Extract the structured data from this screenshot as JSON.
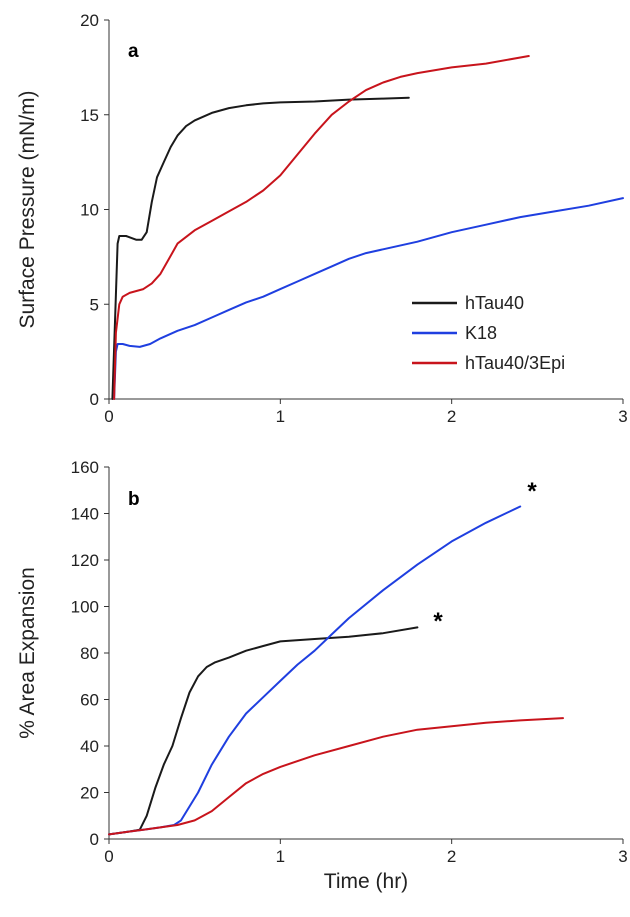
{
  "chart_data": [
    {
      "type": "line",
      "panel_label": "a",
      "xlabel": "",
      "ylabel": "Surface Pressure (mN/m)",
      "xlim": [
        0,
        3
      ],
      "ylim": [
        0,
        20
      ],
      "x_ticks": [
        "0",
        "1",
        "2",
        "3"
      ],
      "y_ticks": [
        "0",
        "5",
        "10",
        "15",
        "20"
      ],
      "grid": false,
      "legend_position": "lower-right",
      "series": [
        {
          "name": "hTau40",
          "color": "#1a1a1a",
          "x": [
            0.02,
            0.04,
            0.05,
            0.06,
            0.08,
            0.1,
            0.13,
            0.16,
            0.19,
            0.22,
            0.25,
            0.28,
            0.32,
            0.36,
            0.4,
            0.45,
            0.5,
            0.6,
            0.7,
            0.8,
            0.9,
            1.0,
            1.2,
            1.4,
            1.6,
            1.75
          ],
          "y": [
            0,
            5.5,
            8.2,
            8.6,
            8.6,
            8.6,
            8.5,
            8.4,
            8.4,
            8.8,
            10.4,
            11.7,
            12.5,
            13.3,
            13.9,
            14.4,
            14.7,
            15.1,
            15.35,
            15.5,
            15.6,
            15.65,
            15.7,
            15.8,
            15.85,
            15.9
          ]
        },
        {
          "name": "K18",
          "color": "#1f3fe0",
          "x": [
            0.03,
            0.04,
            0.05,
            0.08,
            0.12,
            0.18,
            0.24,
            0.3,
            0.4,
            0.5,
            0.6,
            0.7,
            0.8,
            0.9,
            1.0,
            1.1,
            1.2,
            1.3,
            1.4,
            1.5,
            1.6,
            1.8,
            2.0,
            2.2,
            2.4,
            2.6,
            2.8,
            3.0
          ],
          "y": [
            0,
            2.5,
            2.9,
            2.9,
            2.8,
            2.75,
            2.9,
            3.2,
            3.6,
            3.9,
            4.3,
            4.7,
            5.1,
            5.4,
            5.8,
            6.2,
            6.6,
            7.0,
            7.4,
            7.7,
            7.9,
            8.3,
            8.8,
            9.2,
            9.6,
            9.9,
            10.2,
            10.6
          ]
        },
        {
          "name": "hTau40/3Epi",
          "color": "#c8141c",
          "x": [
            0.03,
            0.04,
            0.06,
            0.08,
            0.12,
            0.16,
            0.2,
            0.25,
            0.3,
            0.35,
            0.4,
            0.5,
            0.6,
            0.7,
            0.8,
            0.9,
            1.0,
            1.1,
            1.2,
            1.3,
            1.4,
            1.5,
            1.6,
            1.7,
            1.8,
            2.0,
            2.2,
            2.45
          ],
          "y": [
            0,
            3.5,
            5.0,
            5.4,
            5.6,
            5.7,
            5.8,
            6.1,
            6.6,
            7.4,
            8.2,
            8.9,
            9.4,
            9.9,
            10.4,
            11.0,
            11.8,
            12.9,
            14.0,
            15.0,
            15.7,
            16.3,
            16.7,
            17.0,
            17.2,
            17.5,
            17.7,
            18.1
          ]
        }
      ]
    },
    {
      "type": "line",
      "panel_label": "b",
      "xlabel": "Time (hr)",
      "ylabel": "% Area Expansion",
      "xlim": [
        0,
        3
      ],
      "ylim": [
        0,
        160
      ],
      "x_ticks": [
        "0",
        "1",
        "2",
        "3"
      ],
      "y_ticks": [
        "0",
        "20",
        "40",
        "60",
        "80",
        "100",
        "120",
        "140",
        "160"
      ],
      "grid": false,
      "annotations": [
        "*",
        "*"
      ],
      "series": [
        {
          "name": "hTau40",
          "color": "#1a1a1a",
          "x": [
            0.0,
            0.1,
            0.18,
            0.22,
            0.27,
            0.32,
            0.37,
            0.42,
            0.47,
            0.52,
            0.57,
            0.62,
            0.7,
            0.8,
            0.9,
            1.0,
            1.2,
            1.4,
            1.6,
            1.8
          ],
          "y": [
            2,
            3,
            4,
            10,
            22,
            32,
            40,
            52,
            63,
            70,
            74,
            76,
            78,
            81,
            83,
            85,
            86,
            87,
            88.5,
            91
          ]
        },
        {
          "name": "K18",
          "color": "#1f3fe0",
          "x": [
            0.0,
            0.1,
            0.2,
            0.3,
            0.38,
            0.42,
            0.47,
            0.52,
            0.6,
            0.7,
            0.8,
            0.9,
            1.0,
            1.1,
            1.2,
            1.3,
            1.4,
            1.6,
            1.8,
            2.0,
            2.2,
            2.4
          ],
          "y": [
            2,
            3,
            4,
            5,
            6,
            8,
            14,
            20,
            32,
            44,
            54,
            61,
            68,
            75,
            81,
            88,
            95,
            107,
            118,
            128,
            136,
            143
          ]
        },
        {
          "name": "hTau40/3Epi",
          "color": "#c8141c",
          "x": [
            0.0,
            0.1,
            0.2,
            0.3,
            0.4,
            0.5,
            0.6,
            0.7,
            0.8,
            0.9,
            1.0,
            1.2,
            1.4,
            1.6,
            1.8,
            2.0,
            2.2,
            2.4,
            2.65
          ],
          "y": [
            2,
            3,
            4,
            5,
            6,
            8,
            12,
            18,
            24,
            28,
            31,
            36,
            40,
            44,
            47,
            48.5,
            50,
            51,
            52
          ]
        }
      ]
    }
  ]
}
